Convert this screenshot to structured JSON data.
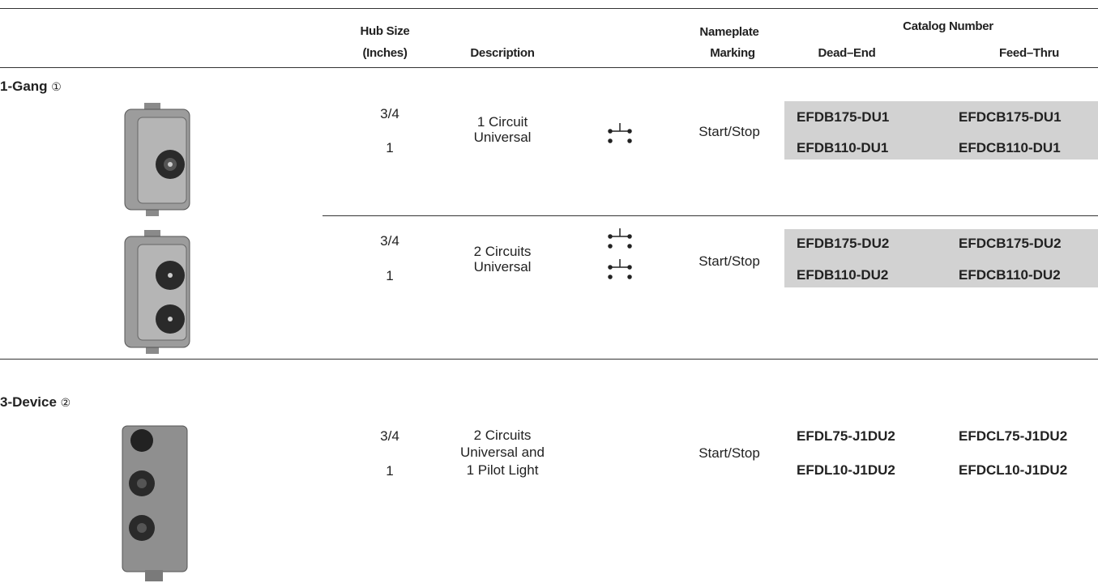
{
  "header": {
    "hub_size": [
      "Hub Size",
      "(Inches)"
    ],
    "description": "Description",
    "nameplate": [
      "Nameplate",
      "Marking"
    ],
    "catalog_number": "Catalog Number",
    "dead_end": "Dead–End",
    "feed_thru": "Feed–Thru"
  },
  "sections": [
    {
      "title": "1-Gang",
      "note": "①",
      "rows": [
        {
          "hub_sizes": [
            "3/4",
            "1"
          ],
          "description": [
            "1 Circuit",
            "Universal"
          ],
          "marking": "Start/Stop",
          "dead_end": [
            "EFDB175-DU1",
            "EFDB110-DU1"
          ],
          "feed_thru": [
            "EFDCB175-DU1",
            "EFDCB110-DU1"
          ]
        },
        {
          "hub_sizes": [
            "3/4",
            "1"
          ],
          "description": [
            "2 Circuits",
            "Universal"
          ],
          "marking": "Start/Stop",
          "dead_end": [
            "EFDB175-DU2",
            "EFDB110-DU2"
          ],
          "feed_thru": [
            "EFDCB175-DU2",
            "EFDCB110-DU2"
          ]
        }
      ]
    },
    {
      "title": "3-Device",
      "note": "②",
      "rows": [
        {
          "hub_sizes": [
            "3/4",
            "1"
          ],
          "description": [
            "2 Circuits",
            "Universal and",
            "1 Pilot Light"
          ],
          "marking": "Start/Stop",
          "dead_end": [
            "EFDL75-J1DU2",
            "EFDL10-J1DU2"
          ],
          "feed_thru": [
            "EFDCL75-J1DU2",
            "EFDCL10-J1DU2"
          ]
        }
      ]
    }
  ]
}
